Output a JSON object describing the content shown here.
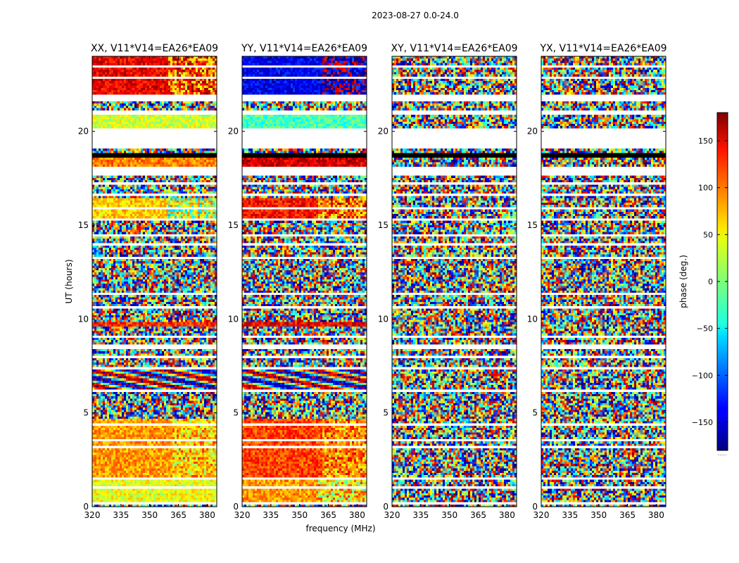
{
  "figure": {
    "suptitle": "2023-08-27 0.0-24.0"
  },
  "chart_data": {
    "type": "heatmap",
    "ylabel": "UT (hours)",
    "xlabel": "frequency (MHz)",
    "xlim": [
      320,
      385
    ],
    "ylim": [
      0,
      24
    ],
    "x_ticks": [
      320,
      335,
      350,
      365,
      380
    ],
    "y_ticks": [
      0,
      5,
      10,
      15,
      20
    ],
    "grid": false,
    "colorbar": {
      "label": "phase (deg.)",
      "range": [
        -180,
        180
      ],
      "ticks": [
        150,
        100,
        50,
        0,
        -50,
        -100,
        -150
      ],
      "colormap": "jet",
      "bottom_note": "....."
    },
    "flagged_rows_hours": [
      [
        0.15,
        0.3
      ],
      [
        0.55,
        0.62
      ],
      [
        0.95,
        1.05
      ],
      [
        1.45,
        1.55
      ],
      [
        1.9,
        1.98
      ],
      [
        2.35,
        2.42
      ],
      [
        2.75,
        2.82
      ],
      [
        3.15,
        3.22
      ],
      [
        3.5,
        3.6
      ],
      [
        3.95,
        4.02
      ],
      [
        4.35,
        4.42
      ],
      [
        4.75,
        4.85
      ],
      [
        6.1,
        6.3
      ],
      [
        7.3,
        7.45
      ],
      [
        7.9,
        8.05
      ],
      [
        8.45,
        8.6
      ],
      [
        9.05,
        9.15
      ],
      [
        10.55,
        10.7
      ],
      [
        11.25,
        11.35
      ],
      [
        11.95,
        12.05
      ],
      [
        12.55,
        12.65
      ],
      [
        13.2,
        13.3
      ],
      [
        13.9,
        14.05
      ],
      [
        14.4,
        14.5
      ],
      [
        15.2,
        15.35
      ],
      [
        15.9,
        16.0
      ],
      [
        16.55,
        16.7
      ],
      [
        17.15,
        17.25
      ],
      [
        17.6,
        18.1
      ],
      [
        18.8,
        18.9
      ],
      [
        19.05,
        20.2
      ],
      [
        20.9,
        21.1
      ],
      [
        21.6,
        22.0
      ],
      [
        22.8,
        22.9
      ],
      [
        23.4,
        23.5
      ]
    ],
    "panels": [
      {
        "title": "XX, V11*V14=EA26*EA09",
        "pol": "XX",
        "coherent_bands": [
          {
            "t": [
              0.3,
              1.45
            ],
            "phase": 40,
            "freq_max": 385,
            "alt": -40
          },
          {
            "t": [
              1.5,
              4.7
            ],
            "phase": 80,
            "freq_max": 362,
            "alt": 40
          },
          {
            "t": [
              6.3,
              7.3
            ],
            "phase": 0,
            "freq_max": 385,
            "alt": 120,
            "wave": true
          },
          {
            "t": [
              9.6,
              9.9
            ],
            "phase": 120,
            "freq_max": 385,
            "alt": -160
          },
          {
            "t": [
              15.3,
              16.4
            ],
            "phase": 60,
            "freq_max": 360,
            "alt": -30
          },
          {
            "t": [
              17.7,
              18.8
            ],
            "phase": 90,
            "freq_max": 385,
            "alt": -120
          },
          {
            "t": [
              20.2,
              20.9
            ],
            "phase": 30,
            "freq_max": 385,
            "alt": -60
          },
          {
            "t": [
              22.0,
              24.0
            ],
            "phase": 140,
            "freq_max": 360,
            "alt": 60
          }
        ]
      },
      {
        "title": "YY, V11*V14=EA26*EA09",
        "pol": "YY",
        "coherent_bands": [
          {
            "t": [
              0.3,
              1.45
            ],
            "phase": 80,
            "freq_max": 360,
            "alt": 20
          },
          {
            "t": [
              1.5,
              4.7
            ],
            "phase": 110,
            "freq_max": 362,
            "alt": 60
          },
          {
            "t": [
              6.3,
              7.3
            ],
            "phase": 0,
            "freq_max": 385,
            "alt": 120,
            "wave": true
          },
          {
            "t": [
              9.6,
              9.9
            ],
            "phase": 140,
            "freq_max": 385,
            "alt": -170
          },
          {
            "t": [
              15.3,
              16.4
            ],
            "phase": 130,
            "freq_max": 360,
            "alt": 60
          },
          {
            "t": [
              17.7,
              18.8
            ],
            "phase": 150,
            "freq_max": 385,
            "alt": -150
          },
          {
            "t": [
              20.2,
              20.9
            ],
            "phase": -20,
            "freq_max": 385,
            "alt": 30
          },
          {
            "t": [
              22.0,
              24.0
            ],
            "phase": -140,
            "freq_max": 362,
            "alt": 160
          }
        ]
      },
      {
        "title": "XY, V11*V14=EA26*EA09",
        "pol": "XY",
        "coherent_bands": []
      },
      {
        "title": "YX, V11*V14=EA26*EA09",
        "pol": "YX",
        "coherent_bands": []
      }
    ]
  }
}
